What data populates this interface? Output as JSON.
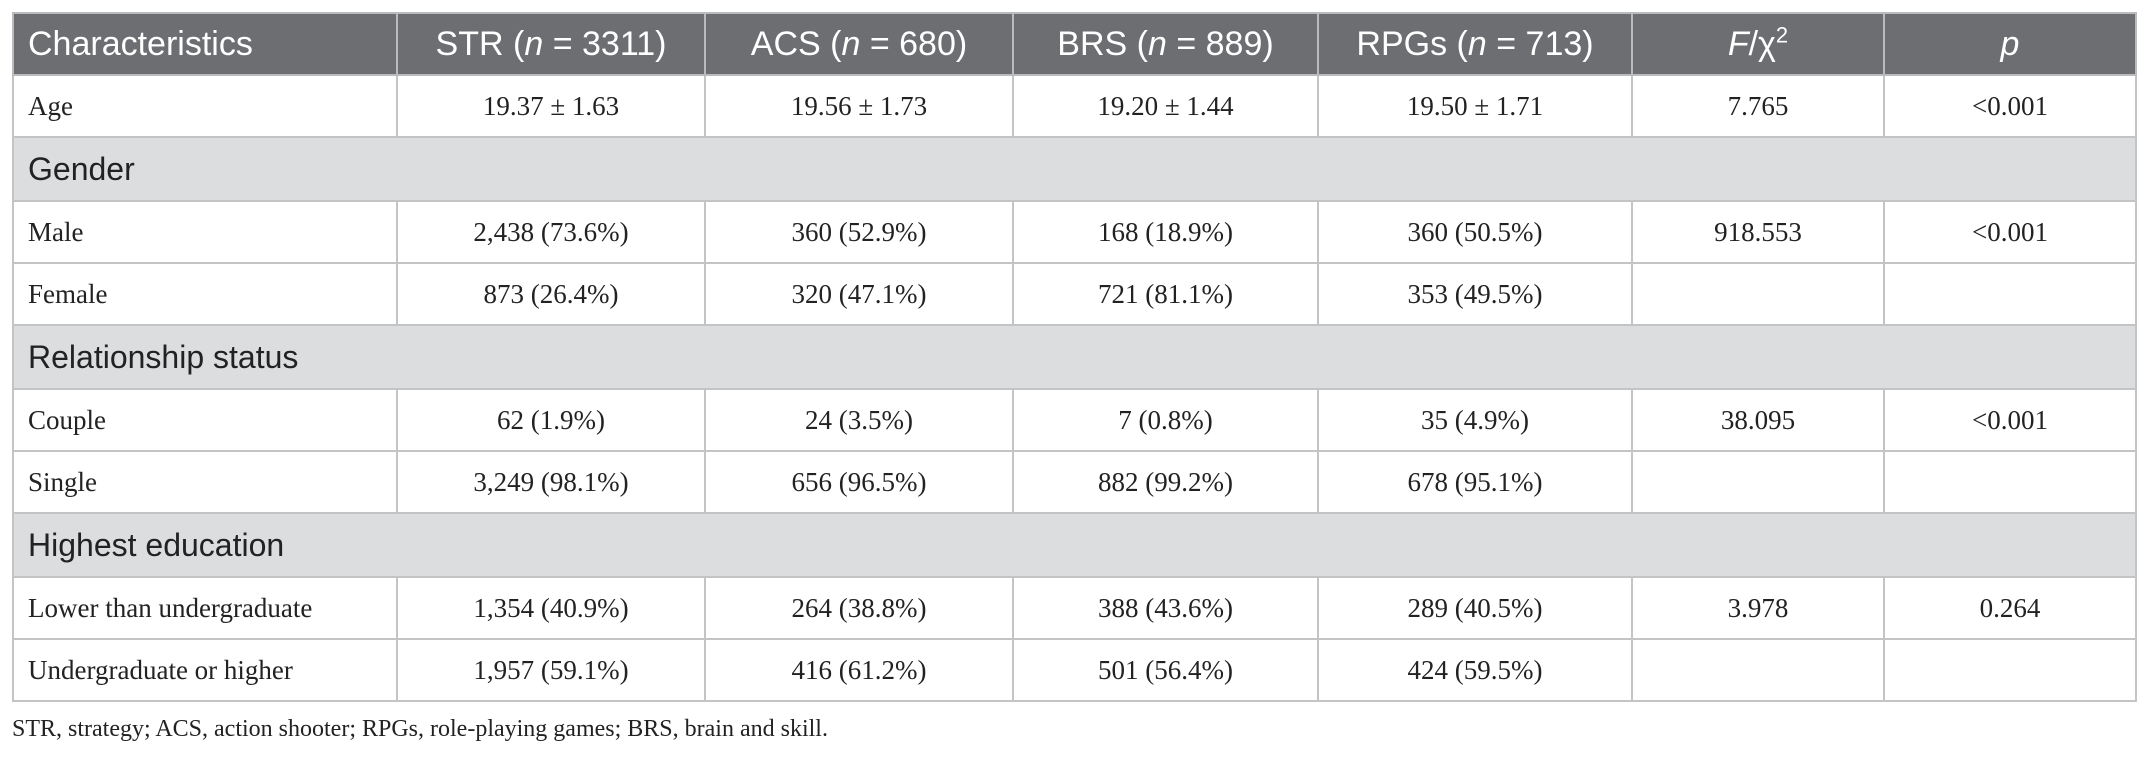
{
  "table": {
    "headers": [
      {
        "pre": "Characteristics",
        "n": "",
        "post": ""
      },
      {
        "pre": "STR (",
        "n": "n",
        "post": " = 3311)"
      },
      {
        "pre": "ACS (",
        "n": "n",
        "post": " = 680)"
      },
      {
        "pre": "BRS (",
        "n": "n",
        "post": " = 889)"
      },
      {
        "pre": "RPGs (",
        "n": "n",
        "post": " = 713)"
      },
      {
        "pre": "",
        "n": "F",
        "post": "/χ",
        "sup": "2"
      },
      {
        "pre": "",
        "n": "p",
        "post": ""
      }
    ],
    "rows": [
      {
        "type": "data",
        "cells": [
          "Age",
          "19.37 ± 1.63",
          "19.56 ± 1.73",
          "19.20 ± 1.44",
          "19.50 ± 1.71",
          "7.765",
          "<0.001"
        ]
      },
      {
        "type": "section",
        "label": "Gender"
      },
      {
        "type": "data",
        "cells": [
          "Male",
          "2,438 (73.6%)",
          "360 (52.9%)",
          "168 (18.9%)",
          "360 (50.5%)",
          "918.553",
          "<0.001"
        ]
      },
      {
        "type": "data",
        "cells": [
          "Female",
          "873 (26.4%)",
          "320 (47.1%)",
          "721 (81.1%)",
          "353 (49.5%)",
          "",
          ""
        ]
      },
      {
        "type": "section",
        "label": "Relationship status"
      },
      {
        "type": "data",
        "cells": [
          "Couple",
          "62 (1.9%)",
          "24 (3.5%)",
          "7 (0.8%)",
          "35 (4.9%)",
          "38.095",
          "<0.001"
        ]
      },
      {
        "type": "data",
        "cells": [
          "Single",
          "3,249 (98.1%)",
          "656 (96.5%)",
          "882 (99.2%)",
          "678 (95.1%)",
          "",
          ""
        ]
      },
      {
        "type": "section",
        "label": "Highest education"
      },
      {
        "type": "data",
        "cells": [
          "Lower than undergraduate",
          "1,354 (40.9%)",
          "264 (38.8%)",
          "388 (43.6%)",
          "289 (40.5%)",
          "3.978",
          "0.264"
        ]
      },
      {
        "type": "data",
        "cells": [
          "Undergraduate or higher",
          "1,957 (59.1%)",
          "416 (61.2%)",
          "501 (56.4%)",
          "424 (59.5%)",
          "",
          ""
        ]
      }
    ]
  },
  "footnote": "STR, strategy; ACS, action shooter; RPGs, role-playing games; BRS, brain and skill."
}
